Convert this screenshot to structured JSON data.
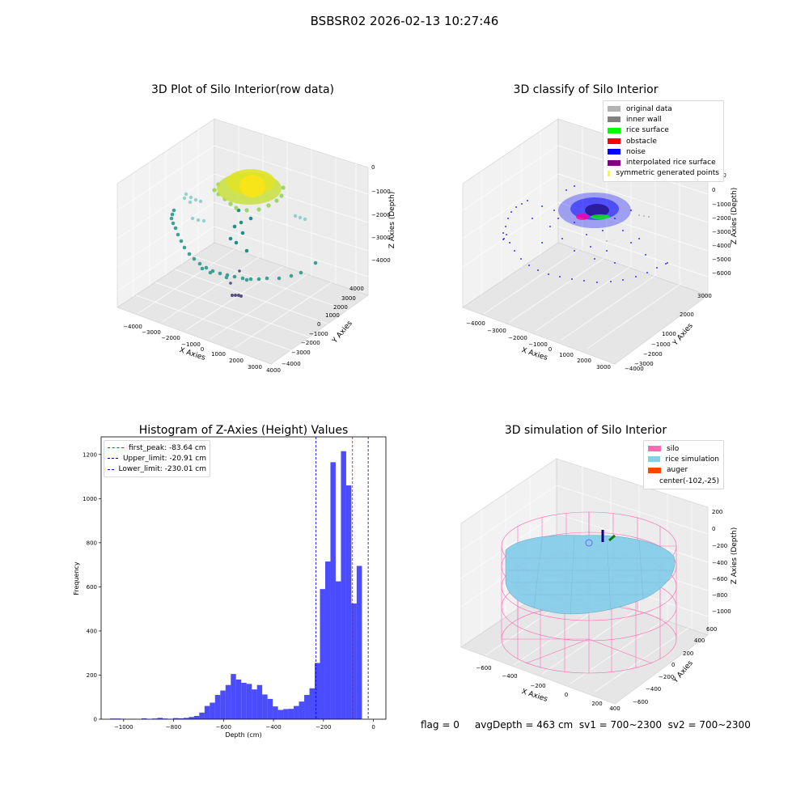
{
  "suptitle": "BSBSR02 2026-02-13 10:27:46",
  "panels": {
    "raw": {
      "title": "3D Plot of Silo Interior(row data)",
      "xlabel": "X Axies",
      "ylabel": "Y Axies",
      "zlabel": "Z Axies (Depth)",
      "xticks": [
        "−4000",
        "−3000",
        "−2000",
        "−1000",
        "0",
        "1000",
        "2000",
        "3000",
        "4000"
      ],
      "yticks": [
        "4000",
        "3000",
        "2000",
        "1000",
        "0",
        "−1000",
        "−2000",
        "−3000",
        "−4000"
      ],
      "zticks": [
        "0",
        "−1000",
        "−2000",
        "−3000",
        "−4000"
      ]
    },
    "classify": {
      "title": "3D classify of Silo Interior",
      "xlabel": "X Axies",
      "ylabel": "Y Axies",
      "zlabel": "Z Axies (Depth)",
      "xticks": [
        "−4000",
        "−3000",
        "−2000",
        "−1000",
        "0",
        "1000",
        "2000",
        "3000"
      ],
      "yticks": [
        "3000",
        "2000",
        "1000",
        "0",
        "−1000",
        "−2000",
        "−3000",
        "−4000"
      ],
      "zticks": [
        "1000",
        "0",
        "−1000",
        "−2000",
        "−3000",
        "−4000",
        "−5000",
        "−6000"
      ],
      "legend": [
        {
          "label": "original data",
          "color": "#b3b3b3"
        },
        {
          "label": "inner wall",
          "color": "#808080"
        },
        {
          "label": "rice surface",
          "color": "#00ff00"
        },
        {
          "label": "obstacle",
          "color": "#ff0000"
        },
        {
          "label": "noise",
          "color": "#0000ff"
        },
        {
          "label": "interpolated rice surface",
          "color": "#800080"
        },
        {
          "label": "symmetric generated points",
          "color": "#ffff00"
        }
      ]
    },
    "simulation": {
      "title": "3D simulation of Silo Interior",
      "xlabel": "X Axies",
      "ylabel": "Y Axies",
      "zlabel": "Z Axies (Depth)",
      "xticks": [
        "−600",
        "−400",
        "−200",
        "0",
        "200",
        "400"
      ],
      "yticks": [
        "600",
        "400",
        "200",
        "0",
        "−200",
        "−400",
        "−600"
      ],
      "zticks": [
        "200",
        "0",
        "−200",
        "−400",
        "−600",
        "−800",
        "−1000"
      ],
      "legend": [
        {
          "label": "silo",
          "color": "#ff69b4"
        },
        {
          "label": "rice simulation",
          "color": "#87ceeb"
        },
        {
          "label": "auger",
          "color": "#ff4500"
        },
        {
          "label": "center(-102,-25)",
          "color": ""
        }
      ]
    }
  },
  "footer": {
    "text": "flag = 0     avgDepth = 463 cm  sv1 = 700~2300  sv2 = 700~2300"
  },
  "chart_data": [
    {
      "type": "bar",
      "title": "Histogram of Z-Axies (Height) Values",
      "xlabel": "Depth (cm)",
      "ylabel": "Frequency",
      "xlim": [
        -1090,
        50
      ],
      "ylim": [
        0,
        1280
      ],
      "bar_color": "#0000ff",
      "xticks": [
        -1000,
        -800,
        -600,
        -400,
        -200,
        0
      ],
      "xtick_labels": [
        "−1000",
        "−800",
        "−600",
        "−400",
        "−200",
        "0"
      ],
      "yticks": [
        0,
        200,
        400,
        600,
        800,
        1000,
        1200
      ],
      "bins": [
        {
          "x0": -1054,
          "x1": -1033,
          "v": 3
        },
        {
          "x0": -1033,
          "x1": -1012,
          "v": 3
        },
        {
          "x0": -1012,
          "x1": -991,
          "v": 2
        },
        {
          "x0": -991,
          "x1": -970,
          "v": 1
        },
        {
          "x0": -970,
          "x1": -949,
          "v": 1
        },
        {
          "x0": -949,
          "x1": -928,
          "v": 0
        },
        {
          "x0": -928,
          "x1": -907,
          "v": 4
        },
        {
          "x0": -907,
          "x1": -886,
          "v": 1
        },
        {
          "x0": -886,
          "x1": -865,
          "v": 3
        },
        {
          "x0": -865,
          "x1": -844,
          "v": 6
        },
        {
          "x0": -844,
          "x1": -823,
          "v": 3
        },
        {
          "x0": -823,
          "x1": -802,
          "v": 1
        },
        {
          "x0": -802,
          "x1": -781,
          "v": 5
        },
        {
          "x0": -781,
          "x1": -760,
          "v": 4
        },
        {
          "x0": -760,
          "x1": -739,
          "v": 6
        },
        {
          "x0": -739,
          "x1": -718,
          "v": 10
        },
        {
          "x0": -718,
          "x1": -697,
          "v": 15
        },
        {
          "x0": -697,
          "x1": -676,
          "v": 30
        },
        {
          "x0": -676,
          "x1": -655,
          "v": 60
        },
        {
          "x0": -655,
          "x1": -634,
          "v": 75
        },
        {
          "x0": -634,
          "x1": -613,
          "v": 110
        },
        {
          "x0": -613,
          "x1": -592,
          "v": 130
        },
        {
          "x0": -592,
          "x1": -571,
          "v": 155
        },
        {
          "x0": -571,
          "x1": -550,
          "v": 205
        },
        {
          "x0": -550,
          "x1": -529,
          "v": 180
        },
        {
          "x0": -529,
          "x1": -508,
          "v": 165
        },
        {
          "x0": -508,
          "x1": -487,
          "v": 160
        },
        {
          "x0": -487,
          "x1": -466,
          "v": 135
        },
        {
          "x0": -466,
          "x1": -445,
          "v": 155
        },
        {
          "x0": -445,
          "x1": -424,
          "v": 112
        },
        {
          "x0": -424,
          "x1": -403,
          "v": 92
        },
        {
          "x0": -403,
          "x1": -382,
          "v": 58
        },
        {
          "x0": -382,
          "x1": -361,
          "v": 42
        },
        {
          "x0": -361,
          "x1": -340,
          "v": 46
        },
        {
          "x0": -340,
          "x1": -319,
          "v": 47
        },
        {
          "x0": -319,
          "x1": -298,
          "v": 60
        },
        {
          "x0": -298,
          "x1": -277,
          "v": 80
        },
        {
          "x0": -277,
          "x1": -256,
          "v": 110
        },
        {
          "x0": -256,
          "x1": -235,
          "v": 140
        },
        {
          "x0": -235,
          "x1": -214,
          "v": 255
        },
        {
          "x0": -214,
          "x1": -193,
          "v": 590
        },
        {
          "x0": -193,
          "x1": -172,
          "v": 715
        },
        {
          "x0": -172,
          "x1": -151,
          "v": 1165
        },
        {
          "x0": -151,
          "x1": -130,
          "v": 625
        },
        {
          "x0": -130,
          "x1": -109,
          "v": 1215
        },
        {
          "x0": -109,
          "x1": -88,
          "v": 1060
        },
        {
          "x0": -88,
          "x1": -67,
          "v": 525
        },
        {
          "x0": -67,
          "x1": -46,
          "v": 695
        }
      ],
      "vlines": [
        {
          "label": "first_peak: -83.64 cm",
          "x": -83.64,
          "color": "#ff0000"
        },
        {
          "label": "Upper_limit: -20.91 cm",
          "x": -20.91,
          "color": "#00008b"
        },
        {
          "label": "Lower_limit: -230.01 cm",
          "x": -230.01,
          "color": "#0000ff"
        }
      ]
    }
  ]
}
